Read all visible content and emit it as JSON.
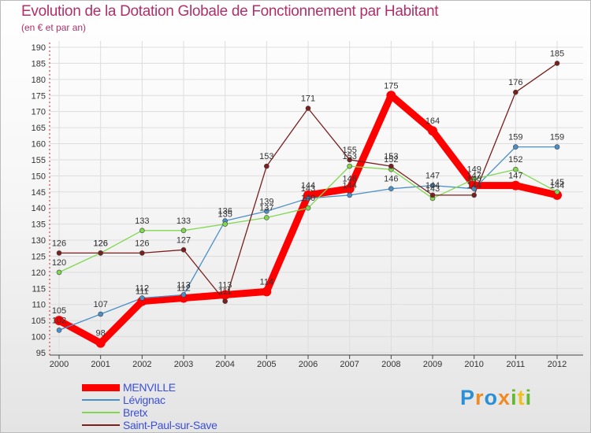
{
  "chart_data": {
    "type": "line",
    "title": "Evolution de la Dotation Globale de Fonctionnement par Habitant",
    "subtitle": "(en € et par an)",
    "xlabel": "",
    "ylabel": "",
    "ylim": [
      95,
      190
    ],
    "yticks": [
      95,
      100,
      105,
      110,
      115,
      120,
      125,
      130,
      135,
      140,
      145,
      150,
      155,
      160,
      165,
      170,
      175,
      180,
      185,
      190
    ],
    "categories": [
      "2000",
      "2001",
      "2002",
      "2003",
      "2004",
      "2005",
      "2006",
      "2007",
      "2008",
      "2009",
      "2010",
      "2011",
      "2012"
    ],
    "series": [
      {
        "name": "MENVILLE",
        "color": "#ff0000",
        "values": [
          105,
          98,
          111,
          112,
          113,
          114,
          144,
          146,
          175,
          164,
          147,
          147,
          144
        ]
      },
      {
        "name": "Lévignac",
        "color": "#4a90c8",
        "values": [
          102,
          107,
          112,
          113,
          136,
          139,
          143,
          144,
          146,
          147,
          146,
          159,
          159
        ]
      },
      {
        "name": "Bretx",
        "color": "#80d850",
        "values": [
          120,
          126,
          133,
          133,
          135,
          137,
          140,
          153,
          152,
          143,
          149,
          152,
          145
        ]
      },
      {
        "name": "Saint-Paul-sur-Save",
        "color": "#7a1e1e",
        "values": [
          126,
          126,
          126,
          127,
          111,
          153,
          171,
          155,
          153,
          144,
          144,
          176,
          185
        ]
      }
    ]
  },
  "logo": {
    "letters": [
      "P",
      "r",
      "o",
      "x",
      "i",
      "t",
      "i"
    ],
    "colors": [
      "#2a8fd6",
      "#f08a24",
      "#2a8fd6",
      "#f08a24",
      "#66b832",
      "#f0c020",
      "#66b832"
    ]
  }
}
